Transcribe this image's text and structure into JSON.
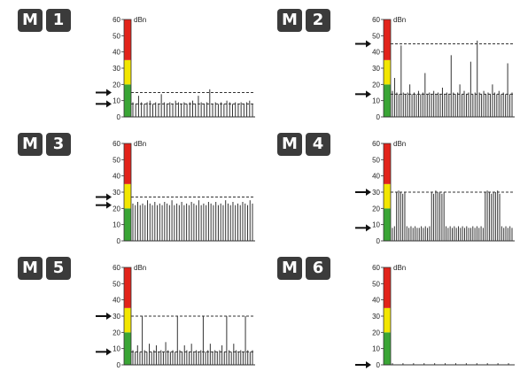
{
  "panels": [
    {
      "letter": "M",
      "number": "1"
    },
    {
      "letter": "M",
      "number": "2"
    },
    {
      "letter": "M",
      "number": "3"
    },
    {
      "letter": "M",
      "number": "4"
    },
    {
      "letter": "M",
      "number": "5"
    },
    {
      "letter": "M",
      "number": "6"
    }
  ],
  "chart_data": [
    {
      "type": "bar",
      "unit_label": "dBn",
      "ylim": [
        0,
        60
      ],
      "y_ticks": [
        "0",
        "10",
        "20",
        "30",
        "40",
        "50",
        "60"
      ],
      "level_bands": [
        {
          "from": 0,
          "to": 20,
          "color": "#3aa535"
        },
        {
          "from": 20,
          "to": 35,
          "color": "#f2e600"
        },
        {
          "from": 35,
          "to": 60,
          "color": "#e2231a"
        }
      ],
      "dashed_lines": [
        8,
        15
      ],
      "arrows": [
        8,
        15
      ],
      "values": [
        9,
        8,
        13,
        9,
        8,
        9,
        10,
        8,
        9,
        8,
        14,
        9,
        8,
        9,
        8,
        10,
        9,
        8,
        9,
        8,
        9,
        10,
        8,
        13,
        9,
        8,
        9,
        17,
        8,
        9,
        8,
        9,
        8,
        10,
        9,
        8,
        9,
        8,
        9,
        8,
        9,
        10,
        8
      ]
    },
    {
      "type": "bar",
      "unit_label": "dBn",
      "ylim": [
        0,
        60
      ],
      "y_ticks": [
        "0",
        "10",
        "20",
        "30",
        "40",
        "50",
        "60"
      ],
      "level_bands": [
        {
          "from": 0,
          "to": 20,
          "color": "#3aa535"
        },
        {
          "from": 20,
          "to": 35,
          "color": "#f2e600"
        },
        {
          "from": 35,
          "to": 60,
          "color": "#e2231a"
        }
      ],
      "dashed_lines": [
        14,
        45
      ],
      "arrows": [
        14,
        45
      ],
      "values": [
        16,
        24,
        15,
        14,
        44,
        15,
        14,
        15,
        20,
        14,
        15,
        14,
        16,
        14,
        15,
        27,
        14,
        15,
        14,
        16,
        14,
        15,
        14,
        18,
        14,
        15,
        14,
        38,
        15,
        14,
        15,
        20,
        14,
        16,
        14,
        15,
        34,
        14,
        15,
        47,
        15,
        14,
        16,
        14,
        15,
        14,
        20,
        15,
        14,
        16,
        14,
        15,
        14,
        33,
        14,
        15
      ]
    },
    {
      "type": "bar",
      "unit_label": "dBn",
      "ylim": [
        0,
        60
      ],
      "y_ticks": [
        "0",
        "10",
        "20",
        "30",
        "40",
        "50",
        "60"
      ],
      "level_bands": [
        {
          "from": 0,
          "to": 20,
          "color": "#3aa535"
        },
        {
          "from": 20,
          "to": 35,
          "color": "#f2e600"
        },
        {
          "from": 35,
          "to": 60,
          "color": "#e2231a"
        }
      ],
      "dashed_lines": [
        27
      ],
      "arrows": [
        22,
        27
      ],
      "values": [
        23,
        22,
        24,
        22,
        23,
        22,
        25,
        23,
        22,
        24,
        22,
        23,
        22,
        24,
        23,
        22,
        25,
        22,
        23,
        22,
        24,
        22,
        23,
        22,
        24,
        23,
        22,
        25,
        22,
        23,
        22,
        24,
        23,
        22,
        24,
        22,
        23,
        22,
        25,
        23,
        22,
        24,
        22,
        23,
        22,
        24,
        23,
        22,
        25,
        23
      ]
    },
    {
      "type": "bar",
      "unit_label": "dBn",
      "ylim": [
        0,
        60
      ],
      "y_ticks": [
        "0",
        "10",
        "20",
        "30",
        "40",
        "50",
        "60"
      ],
      "level_bands": [
        {
          "from": 0,
          "to": 20,
          "color": "#3aa535"
        },
        {
          "from": 20,
          "to": 35,
          "color": "#f2e600"
        },
        {
          "from": 35,
          "to": 60,
          "color": "#e2231a"
        }
      ],
      "dashed_lines": [
        30
      ],
      "arrows": [
        8,
        30
      ],
      "values": [
        8,
        9,
        30,
        31,
        30,
        29,
        30,
        9,
        8,
        9,
        8,
        9,
        8,
        8,
        9,
        8,
        9,
        8,
        9,
        30,
        29,
        31,
        30,
        30,
        29,
        30,
        9,
        8,
        9,
        8,
        9,
        8,
        9,
        8,
        9,
        8,
        9,
        8,
        8,
        9,
        8,
        9,
        8,
        9,
        8,
        30,
        31,
        30,
        29,
        30,
        30,
        31,
        29,
        9,
        8,
        9,
        8,
        9,
        8
      ]
    },
    {
      "type": "bar",
      "unit_label": "dBn",
      "ylim": [
        0,
        60
      ],
      "y_ticks": [
        "0",
        "10",
        "20",
        "30",
        "40",
        "50",
        "60"
      ],
      "level_bands": [
        {
          "from": 0,
          "to": 20,
          "color": "#3aa535"
        },
        {
          "from": 20,
          "to": 35,
          "color": "#f2e600"
        },
        {
          "from": 35,
          "to": 60,
          "color": "#e2231a"
        }
      ],
      "dashed_lines": [
        8,
        30
      ],
      "arrows": [
        8,
        30
      ],
      "values": [
        9,
        8,
        12,
        8,
        30,
        9,
        8,
        13,
        8,
        9,
        12,
        8,
        9,
        8,
        14,
        9,
        8,
        9,
        8,
        30,
        9,
        8,
        12,
        9,
        8,
        13,
        8,
        9,
        8,
        9,
        30,
        8,
        9,
        13,
        8,
        9,
        8,
        9,
        12,
        8,
        30,
        9,
        8,
        13,
        9,
        8,
        9,
        8,
        30,
        9,
        8,
        9
      ]
    },
    {
      "type": "bar",
      "unit_label": "dBn",
      "ylim": [
        0,
        60
      ],
      "y_ticks": [
        "0",
        "10",
        "20",
        "30",
        "40",
        "50",
        "60"
      ],
      "level_bands": [
        {
          "from": 0,
          "to": 20,
          "color": "#3aa535"
        },
        {
          "from": 20,
          "to": 35,
          "color": "#f2e600"
        },
        {
          "from": 35,
          "to": 60,
          "color": "#e2231a"
        }
      ],
      "dashed_lines": [],
      "arrows": [
        0
      ],
      "values": [
        1,
        0,
        0,
        1,
        0,
        0,
        1,
        0,
        0,
        1,
        0,
        0,
        1,
        0,
        0,
        1,
        0,
        0,
        1,
        0,
        0,
        1,
        0,
        0,
        1,
        0,
        0,
        1,
        0,
        0,
        1,
        0,
        0,
        1,
        0
      ]
    }
  ]
}
